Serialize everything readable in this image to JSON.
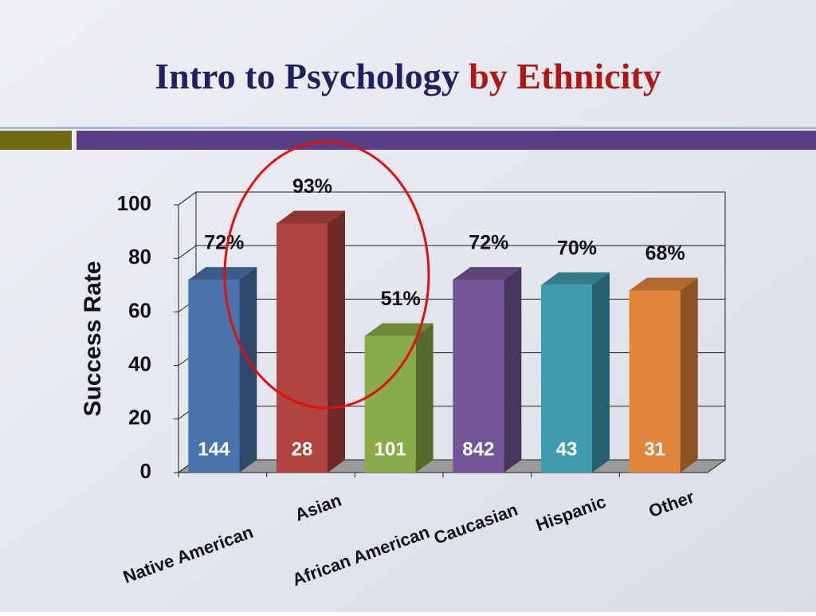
{
  "chart_data": {
    "type": "bar3d",
    "title": [
      "Intro to Psychology",
      "by Ethnicity"
    ],
    "ylabel": "Success Rate",
    "categories": [
      "Native American",
      "Asian",
      "African American",
      "Caucasian",
      "Hispanic",
      "Other"
    ],
    "values": [
      72,
      93,
      51,
      72,
      70,
      68
    ],
    "value_labels": [
      "72%",
      "93%",
      "51%",
      "72%",
      "70%",
      "68%"
    ],
    "counts": [
      144,
      28,
      101,
      842,
      43,
      31
    ],
    "colors": [
      "#4a72ad",
      "#b0433f",
      "#8aab4a",
      "#735695",
      "#3f9bb0",
      "#e0853a"
    ],
    "ylim": [
      0,
      100
    ],
    "yticks": [
      0,
      20,
      40,
      60,
      80,
      100
    ],
    "grid": true
  }
}
